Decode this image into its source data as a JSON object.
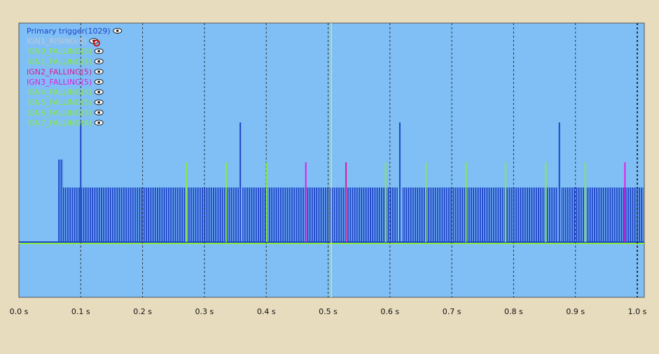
{
  "chart_data": {
    "type": "event",
    "xlim": [
      0,
      1
    ],
    "xticks": [
      {
        "value": 0,
        "label": "0.0 s"
      },
      {
        "value": 0.1,
        "label": "0.1 s"
      },
      {
        "value": 0.2,
        "label": "0.2 s"
      },
      {
        "value": 0.3,
        "label": "0.3 s"
      },
      {
        "value": 0.4,
        "label": "0.4 s"
      },
      {
        "value": 0.5,
        "label": "0.5 s"
      },
      {
        "value": 0.6,
        "label": "0.6 s"
      },
      {
        "value": 0.7,
        "label": "0.7 s"
      },
      {
        "value": 0.8,
        "label": "0.8 s"
      },
      {
        "value": 0.9,
        "label": "0.9 s"
      },
      {
        "value": 1,
        "label": "1.0 s"
      }
    ],
    "grid": true,
    "series": [
      {
        "name": "Primary trigger(1029)",
        "color": "#1f45c8",
        "values": [
          0.1,
          0.358,
          0.616,
          0.874
        ]
      },
      {
        "name": "IGN1_RISING(0)",
        "color": "#c8c8d0",
        "values": []
      },
      {
        "name": "IGN0_FALLING(5)",
        "color": "#88e840",
        "values": [
          0.271,
          0.593,
          0.916
        ]
      },
      {
        "name": "IGN1_FALLING(5)",
        "color": "#88e840",
        "values": [
          0.335,
          0.658
        ]
      },
      {
        "name": "IGN2_FALLING(5)",
        "color": "#e0189a",
        "values": [
          0.529
        ]
      },
      {
        "name": "IGN3_FALLING(5)",
        "color": "#e020e0",
        "values": [
          0.464,
          0.98
        ]
      },
      {
        "name": "IGN4_FALLING(5)",
        "color": "#88e840",
        "values": [
          0.401,
          0.723
        ]
      },
      {
        "name": "IGN5_FALLING(5)",
        "color": "#88e840",
        "values": [
          0.787
        ]
      },
      {
        "name": "IGN6_FALLING(5)",
        "color": "#88e840",
        "values": [
          0.852
        ]
      },
      {
        "name": "IGN7_FALLING(4)",
        "color": "#88e840",
        "values": []
      }
    ]
  }
}
